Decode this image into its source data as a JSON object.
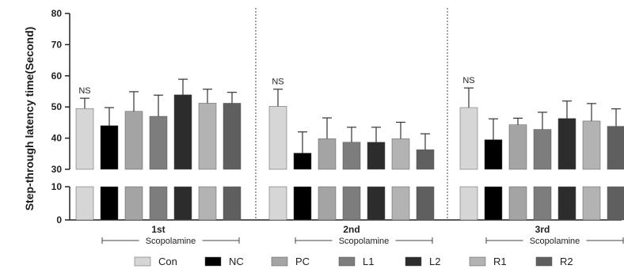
{
  "chart_data": {
    "type": "bar",
    "ylabel": "Step-through latency time(Second)",
    "y_axis_break": [
      10,
      30
    ],
    "ylim": [
      0,
      80
    ],
    "yticks": [
      0,
      10,
      30,
      40,
      50,
      60,
      70,
      80
    ],
    "groups": [
      "1st",
      "2nd",
      "3rd"
    ],
    "group_sublabel": "Scopolamine",
    "annotation": "NS",
    "legend_position": "bottom",
    "series": [
      {
        "name": "Con",
        "color": "#d6d6d6",
        "values": [
          49.5,
          50.2,
          49.8
        ],
        "errors": [
          3.3,
          5.5,
          6.3
        ]
      },
      {
        "name": "NC",
        "color": "#000000",
        "values": [
          44.0,
          35.2,
          39.5
        ],
        "errors": [
          5.8,
          6.8,
          6.7
        ]
      },
      {
        "name": "PC",
        "color": "#a4a4a4",
        "values": [
          48.6,
          39.8,
          44.3
        ],
        "errors": [
          6.3,
          6.7,
          2.1
        ]
      },
      {
        "name": "L1",
        "color": "#7d7d7d",
        "values": [
          47.0,
          38.7,
          42.8
        ],
        "errors": [
          6.8,
          4.8,
          5.5
        ]
      },
      {
        "name": "L2",
        "color": "#2c2c2c",
        "values": [
          53.9,
          38.7,
          46.3
        ],
        "errors": [
          5.0,
          4.8,
          5.6
        ]
      },
      {
        "name": "R1",
        "color": "#b3b3b3",
        "values": [
          51.2,
          39.8,
          45.5
        ],
        "errors": [
          4.5,
          5.3,
          5.6
        ]
      },
      {
        "name": "R2",
        "color": "#5f5f5f",
        "values": [
          51.2,
          36.3,
          43.8
        ],
        "errors": [
          3.5,
          5.1,
          5.6
        ]
      }
    ]
  }
}
